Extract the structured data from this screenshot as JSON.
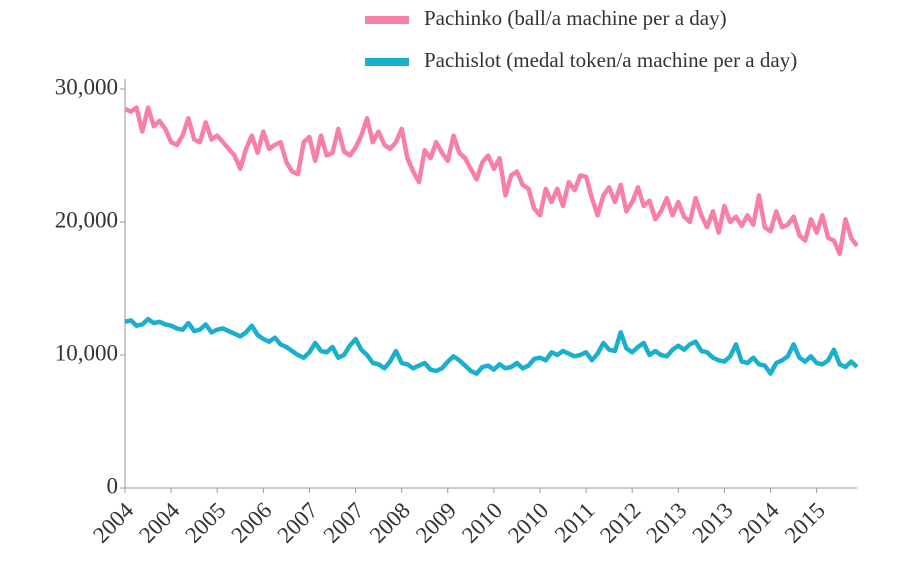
{
  "chart_data": {
    "type": "line",
    "categories": [
      "2004",
      null,
      null,
      null,
      null,
      null,
      null,
      null,
      "2004",
      null,
      null,
      null,
      null,
      null,
      null,
      null,
      "2005",
      null,
      null,
      null,
      null,
      null,
      null,
      null,
      "2006",
      null,
      null,
      null,
      null,
      null,
      null,
      null,
      "2007",
      null,
      null,
      null,
      null,
      null,
      null,
      null,
      "2007",
      null,
      null,
      null,
      null,
      null,
      null,
      null,
      "2008",
      null,
      null,
      null,
      null,
      null,
      null,
      null,
      "2009",
      null,
      null,
      null,
      null,
      null,
      null,
      null,
      "2010",
      null,
      null,
      null,
      null,
      null,
      null,
      null,
      "2010",
      null,
      null,
      null,
      null,
      null,
      null,
      null,
      "2011",
      null,
      null,
      null,
      null,
      null,
      null,
      null,
      "2012",
      null,
      null,
      null,
      null,
      null,
      null,
      null,
      "2013",
      null,
      null,
      null,
      null,
      null,
      null,
      null,
      "2013",
      null,
      null,
      null,
      null,
      null,
      null,
      null,
      "2014",
      null,
      null,
      null,
      null,
      null,
      null,
      null,
      "2015",
      null,
      null,
      null,
      null,
      null,
      null,
      null
    ],
    "series": [
      {
        "name": "Pachinko (ball/a machine per a day)",
        "color": "#f77fa8",
        "values": [
          28500,
          28300,
          28600,
          26800,
          28600,
          27200,
          27600,
          27000,
          26000,
          25800,
          26500,
          27800,
          26200,
          26000,
          27500,
          26200,
          26500,
          26000,
          25500,
          25000,
          24000,
          25500,
          26500,
          25200,
          26800,
          25500,
          25800,
          26000,
          24500,
          23800,
          23600,
          26000,
          26400,
          24600,
          26500,
          25000,
          25200,
          27000,
          25300,
          25000,
          25600,
          26500,
          27800,
          26000,
          26800,
          25800,
          25500,
          26000,
          27000,
          24800,
          23800,
          23000,
          25400,
          24800,
          26000,
          25200,
          24600,
          26500,
          25200,
          24800,
          24000,
          23200,
          24500,
          25000,
          24000,
          24800,
          22000,
          23500,
          23800,
          22800,
          22500,
          21000,
          20500,
          22500,
          21500,
          22500,
          21200,
          23000,
          22400,
          23500,
          23400,
          21800,
          20500,
          22000,
          22600,
          21500,
          22800,
          20800,
          21500,
          22600,
          21200,
          21600,
          20200,
          20800,
          21800,
          20500,
          21500,
          20400,
          20000,
          21800,
          20500,
          19600,
          20800,
          19200,
          21200,
          20000,
          20400,
          19700,
          20500,
          19800,
          22000,
          19600,
          19300,
          20800,
          19600,
          19800,
          20400,
          19000,
          18600,
          20200,
          19200,
          20500,
          18800,
          18600,
          17600,
          20200,
          18800,
          18200
        ]
      },
      {
        "name": "Pachislot (medal token/a machine per a day)",
        "color": "#1ab0cc",
        "values": [
          12500,
          12600,
          12200,
          12300,
          12700,
          12400,
          12500,
          12300,
          12200,
          12000,
          11900,
          12400,
          11800,
          11900,
          12300,
          11700,
          11900,
          12000,
          11800,
          11600,
          11400,
          11700,
          12200,
          11500,
          11200,
          11000,
          11300,
          10800,
          10600,
          10300,
          10000,
          9800,
          10200,
          10900,
          10300,
          10200,
          10600,
          9800,
          10000,
          10700,
          11200,
          10400,
          10000,
          9400,
          9300,
          9000,
          9500,
          10300,
          9400,
          9300,
          9000,
          9200,
          9400,
          8900,
          8800,
          9000,
          9500,
          9900,
          9600,
          9200,
          8800,
          8600,
          9100,
          9200,
          8900,
          9300,
          9000,
          9100,
          9400,
          9000,
          9200,
          9700,
          9800,
          9600,
          10200,
          10000,
          10300,
          10100,
          9900,
          10000,
          10200,
          9600,
          10100,
          10900,
          10400,
          10300,
          11700,
          10500,
          10200,
          10600,
          10900,
          10000,
          10300,
          10000,
          9900,
          10400,
          10700,
          10400,
          10800,
          11000,
          10300,
          10200,
          9800,
          9600,
          9500,
          9900,
          10800,
          9500,
          9400,
          9800,
          9300,
          9200,
          8600,
          9400,
          9600,
          9900,
          10800,
          9800,
          9500,
          9900,
          9400,
          9300,
          9600,
          10400,
          9300,
          9100,
          9500,
          9100
        ]
      }
    ],
    "ylim": [
      0,
      30000
    ],
    "yticks": [
      0,
      {
        "value": 10000,
        "label": "10,000"
      },
      {
        "value": 20000,
        "label": "20,000"
      },
      {
        "value": 30000,
        "label": "30,000"
      }
    ],
    "grid": false
  }
}
